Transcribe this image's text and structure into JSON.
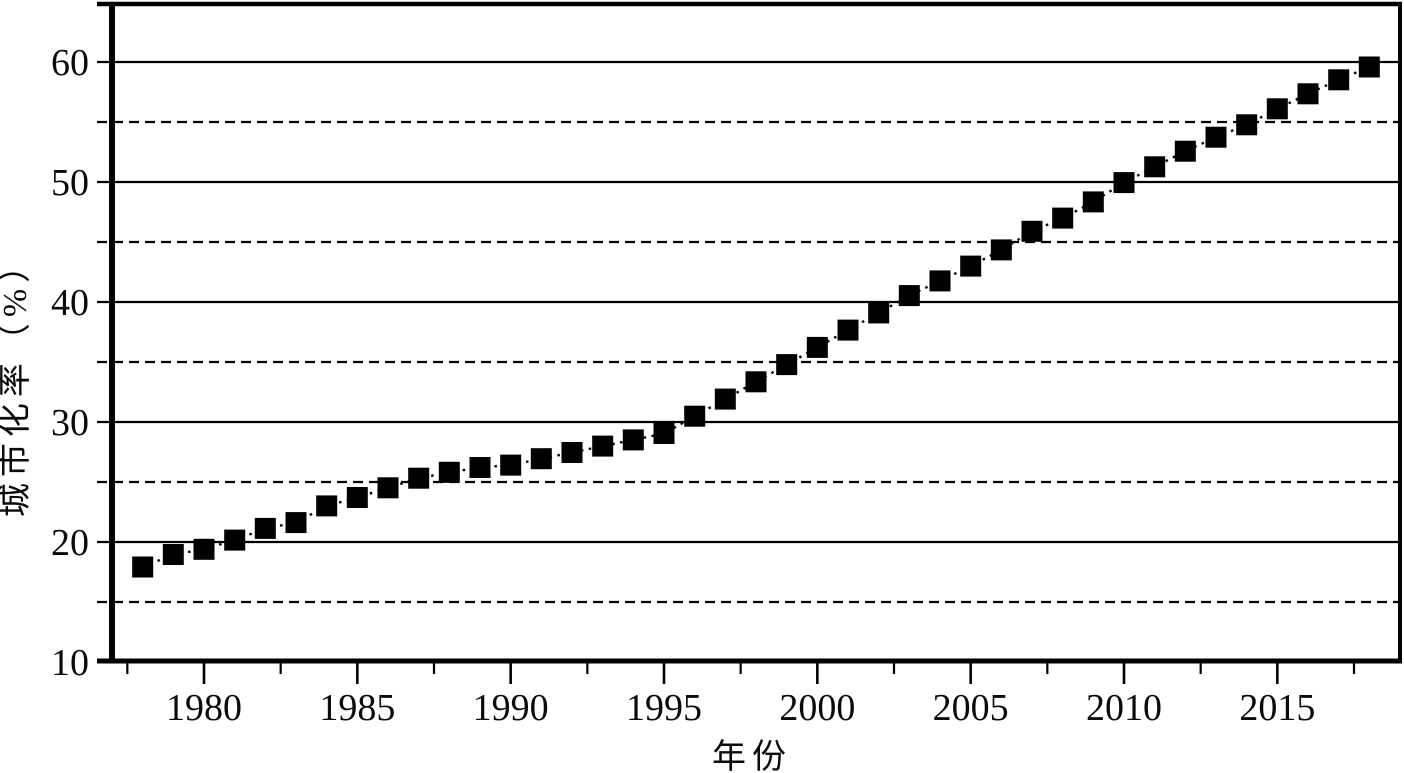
{
  "chart_data": {
    "type": "scatter",
    "title": "",
    "xlabel": "年份",
    "ylabel": "城市化率（%）",
    "x": [
      1978,
      1979,
      1980,
      1981,
      1982,
      1983,
      1984,
      1985,
      1986,
      1987,
      1988,
      1989,
      1990,
      1991,
      1992,
      1993,
      1994,
      1995,
      1996,
      1997,
      1998,
      1999,
      2000,
      2001,
      2002,
      2003,
      2004,
      2005,
      2006,
      2007,
      2008,
      2009,
      2010,
      2011,
      2012,
      2013,
      2014,
      2015,
      2016,
      2017,
      2018
    ],
    "values": [
      17.92,
      18.96,
      19.39,
      20.16,
      21.13,
      21.62,
      23.01,
      23.71,
      24.52,
      25.32,
      25.81,
      26.21,
      26.41,
      26.94,
      27.46,
      27.99,
      28.51,
      29.04,
      30.48,
      31.91,
      33.35,
      34.78,
      36.22,
      37.66,
      39.09,
      40.53,
      41.76,
      42.99,
      44.34,
      45.89,
      46.99,
      48.34,
      49.95,
      51.27,
      52.57,
      53.73,
      54.77,
      56.1,
      57.35,
      58.52,
      59.58
    ],
    "xlim": [
      1977,
      2019
    ],
    "ylim": [
      10,
      65
    ],
    "x_major_ticks": [
      1980,
      1985,
      1990,
      1995,
      2000,
      2005,
      2010,
      2015
    ],
    "x_minor_ticks": [
      1977.5,
      1982.5,
      1987.5,
      1992.5,
      1997.5,
      2002.5,
      2007.5,
      2012.5,
      2017.5
    ],
    "y_gridlines_solid": [
      10,
      20,
      30,
      40,
      50,
      60
    ],
    "y_gridlines_dashed": [
      15,
      25,
      35,
      45,
      55
    ],
    "y_tick_labels": [
      "10",
      "20",
      "30",
      "40",
      "50",
      "60"
    ],
    "grid": "horizontal",
    "legend": "none",
    "marker": "filled-square",
    "marker_size": 21,
    "line_style": "dotted",
    "colors": {
      "foreground": "#000000",
      "background": "#ffffff"
    }
  }
}
